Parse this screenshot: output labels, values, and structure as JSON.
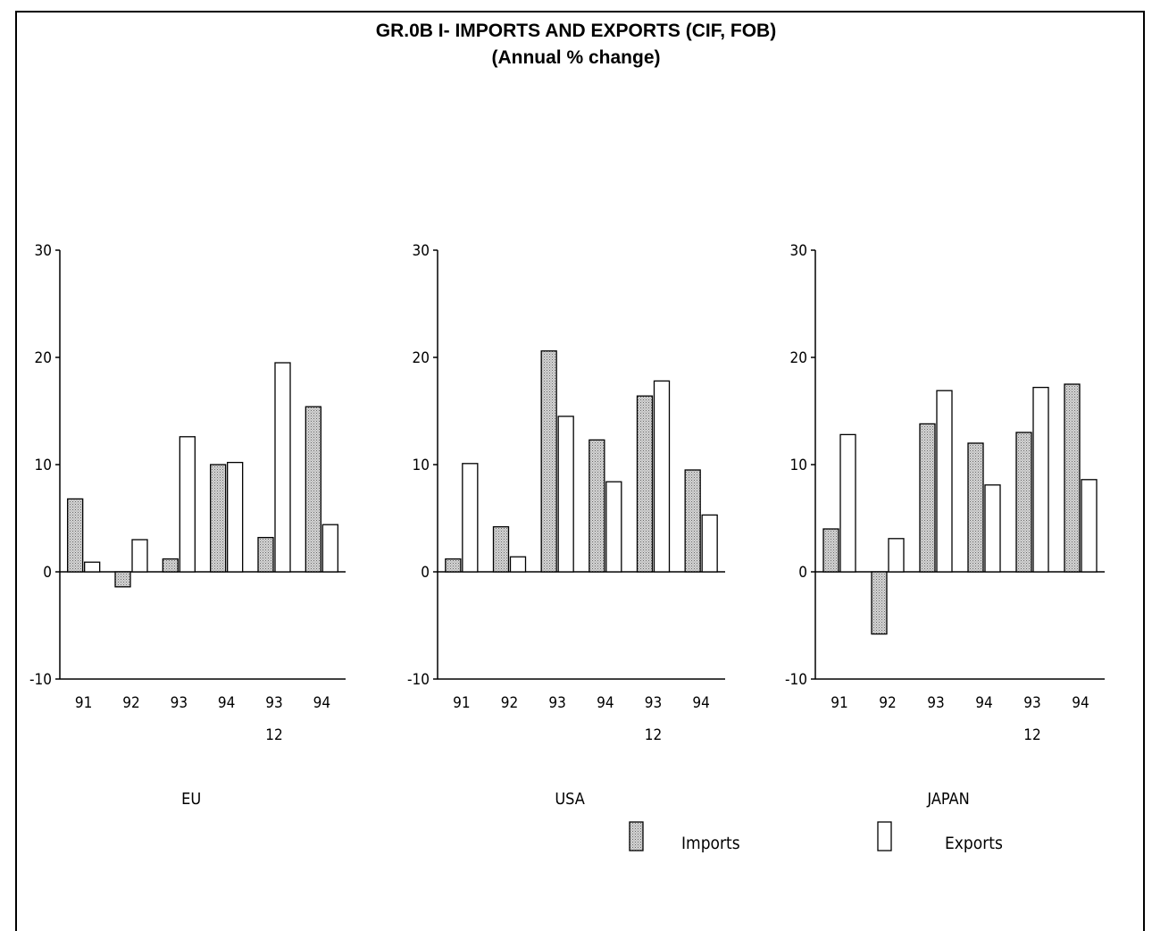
{
  "title": "GR.0B I- IMPORTS AND EXPORTS (CIF, FOB)",
  "subtitle": "(Annual % change)",
  "legend": [
    {
      "name": "Imports",
      "fill": "shaded"
    },
    {
      "name": "Exports",
      "fill": "white"
    }
  ],
  "colors": {
    "imports_fill": "#c8c8c8",
    "imports_stroke": "#000000",
    "exports_fill": "#ffffff",
    "axis": "#000000"
  },
  "chart_data": [
    {
      "type": "bar",
      "panel": "EU",
      "categories": [
        "91",
        "92",
        "93",
        "94",
        "93",
        "94"
      ],
      "category_sublabels": [
        "",
        "",
        "",
        "",
        "12",
        ""
      ],
      "series": [
        {
          "name": "Imports",
          "values": [
            6.8,
            -1.4,
            1.2,
            10.0,
            3.2,
            15.4
          ]
        },
        {
          "name": "Exports",
          "values": [
            0.9,
            3.0,
            12.6,
            10.2,
            19.5,
            4.4
          ]
        }
      ],
      "ylim": [
        -10,
        30
      ],
      "yticks": [
        -10,
        0,
        10,
        20,
        30
      ],
      "xlabel": "EU",
      "ylabel": ""
    },
    {
      "type": "bar",
      "panel": "USA",
      "categories": [
        "91",
        "92",
        "93",
        "94",
        "93",
        "94"
      ],
      "category_sublabels": [
        "",
        "",
        "",
        "",
        "12",
        ""
      ],
      "series": [
        {
          "name": "Imports",
          "values": [
            1.2,
            4.2,
            20.6,
            12.3,
            16.4,
            9.5
          ]
        },
        {
          "name": "Exports",
          "values": [
            10.1,
            1.4,
            14.5,
            8.4,
            17.8,
            5.3
          ]
        }
      ],
      "ylim": [
        -10,
        30
      ],
      "yticks": [
        -10,
        0,
        10,
        20,
        30
      ],
      "xlabel": "USA",
      "ylabel": ""
    },
    {
      "type": "bar",
      "panel": "JAPAN",
      "categories": [
        "91",
        "92",
        "93",
        "94",
        "93",
        "94"
      ],
      "category_sublabels": [
        "",
        "",
        "",
        "",
        "12",
        ""
      ],
      "series": [
        {
          "name": "Imports",
          "values": [
            4.0,
            -5.8,
            13.8,
            12.0,
            13.0,
            17.5
          ]
        },
        {
          "name": "Exports",
          "values": [
            12.8,
            3.1,
            16.9,
            8.1,
            17.2,
            8.6
          ]
        }
      ],
      "ylim": [
        -10,
        30
      ],
      "yticks": [
        -10,
        0,
        10,
        20,
        30
      ],
      "xlabel": "JAPAN",
      "ylabel": ""
    }
  ]
}
